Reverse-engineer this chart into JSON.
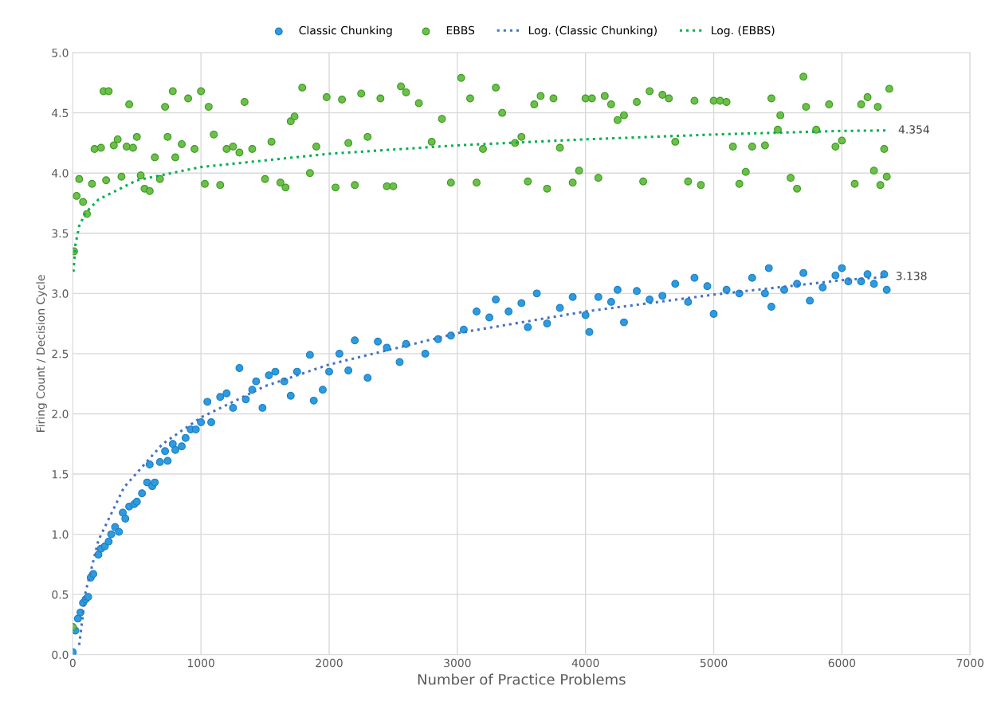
{
  "chart_data": {
    "type": "scatter",
    "xlabel": "Number of Practice Problems",
    "ylabel": "Firing Count / Decision Cycle",
    "xlim": [
      0,
      7000
    ],
    "xticks": [
      0,
      1000,
      2000,
      3000,
      4000,
      5000,
      6000,
      7000
    ],
    "ylim": [
      0,
      5
    ],
    "yticks": [
      {
        "value": 0,
        "label": "0.0"
      },
      {
        "value": 0.5,
        "label": "0.5"
      },
      {
        "value": 1,
        "label": "1.0"
      },
      {
        "value": 1.5,
        "label": "1.5"
      },
      {
        "value": 2,
        "label": "2.0"
      },
      {
        "value": 2.5,
        "label": "2.5"
      },
      {
        "value": 3,
        "label": "3.0"
      },
      {
        "value": 3.5,
        "label": "3.5"
      },
      {
        "value": 4,
        "label": "4.0"
      },
      {
        "value": 4.5,
        "label": "4.5"
      },
      {
        "value": 5,
        "label": "5.0"
      }
    ],
    "grid": true,
    "legend": "top",
    "marker": "circle",
    "series": [
      {
        "name": "Classic Chunking",
        "color": "#2e9be0",
        "x": [
          0,
          20,
          40,
          60,
          80,
          100,
          120,
          140,
          160,
          200,
          220,
          250,
          280,
          300,
          330,
          360,
          390,
          410,
          440,
          480,
          500,
          540,
          580,
          600,
          620,
          640,
          680,
          720,
          740,
          780,
          800,
          850,
          880,
          920,
          960,
          1000,
          1050,
          1080,
          1150,
          1200,
          1250,
          1300,
          1350,
          1400,
          1430,
          1480,
          1530,
          1580,
          1650,
          1700,
          1750,
          1850,
          1880,
          1950,
          2000,
          2080,
          2150,
          2200,
          2300,
          2380,
          2450,
          2550,
          2600,
          2750,
          2850,
          2950,
          3050,
          3150,
          3250,
          3300,
          3400,
          3500,
          3550,
          3620,
          3700,
          3800,
          3900,
          4000,
          4030,
          4100,
          4200,
          4250,
          4300,
          4400,
          4500,
          4600,
          4700,
          4800,
          4850,
          4950,
          5000,
          5100,
          5200,
          5300,
          5400,
          5430,
          5450,
          5550,
          5650,
          5700,
          5750,
          5850,
          5950,
          6000,
          6050,
          6150,
          6200,
          6250,
          6330,
          6350
        ],
        "values": [
          0.02,
          0.2,
          0.3,
          0.35,
          0.43,
          0.46,
          0.48,
          0.64,
          0.67,
          0.83,
          0.88,
          0.9,
          0.94,
          1.0,
          1.06,
          1.02,
          1.18,
          1.13,
          1.23,
          1.25,
          1.27,
          1.34,
          1.43,
          1.58,
          1.4,
          1.43,
          1.6,
          1.69,
          1.61,
          1.75,
          1.7,
          1.73,
          1.8,
          1.87,
          1.87,
          1.93,
          2.1,
          1.93,
          2.14,
          2.17,
          2.05,
          2.38,
          2.12,
          2.2,
          2.27,
          2.05,
          2.32,
          2.35,
          2.27,
          2.15,
          2.35,
          2.49,
          2.11,
          2.2,
          2.35,
          2.5,
          2.36,
          2.61,
          2.3,
          2.6,
          2.55,
          2.43,
          2.58,
          2.5,
          2.62,
          2.65,
          2.7,
          2.85,
          2.8,
          2.95,
          2.85,
          2.92,
          2.72,
          3.0,
          2.75,
          2.88,
          2.97,
          2.82,
          2.68,
          2.97,
          2.93,
          3.03,
          2.76,
          3.02,
          2.95,
          2.98,
          3.08,
          2.93,
          3.13,
          3.06,
          2.83,
          3.03,
          3.0,
          3.13,
          3.0,
          3.21,
          2.89,
          3.03,
          3.08,
          3.17,
          2.94,
          3.05,
          3.15,
          3.21,
          3.1,
          3.1,
          3.16,
          3.08,
          3.16,
          3.03
        ]
      },
      {
        "name": "EBBS",
        "color": "#6cc04a",
        "x": [
          0,
          10,
          30,
          50,
          80,
          110,
          150,
          170,
          220,
          240,
          260,
          280,
          320,
          350,
          380,
          420,
          440,
          470,
          500,
          530,
          560,
          600,
          640,
          680,
          720,
          740,
          780,
          800,
          850,
          900,
          950,
          1000,
          1030,
          1060,
          1100,
          1150,
          1200,
          1250,
          1300,
          1340,
          1400,
          1500,
          1550,
          1620,
          1660,
          1700,
          1730,
          1790,
          1850,
          1900,
          1980,
          2050,
          2100,
          2150,
          2200,
          2250,
          2300,
          2400,
          2450,
          2500,
          2560,
          2600,
          2700,
          2800,
          2880,
          2950,
          3030,
          3100,
          3150,
          3200,
          3300,
          3350,
          3450,
          3500,
          3550,
          3600,
          3650,
          3700,
          3750,
          3800,
          3900,
          3950,
          4000,
          4050,
          4100,
          4150,
          4200,
          4250,
          4300,
          4400,
          4450,
          4500,
          4600,
          4650,
          4700,
          4800,
          4850,
          4900,
          5000,
          5050,
          5100,
          5150,
          5200,
          5250,
          5300,
          5400,
          5450,
          5500,
          5520,
          5600,
          5650,
          5700,
          5720,
          5800,
          5900,
          5950,
          6000,
          6100,
          6150,
          6200,
          6250,
          6280,
          6300,
          6330,
          6350,
          6370
        ],
        "values": [
          0.23,
          3.35,
          3.81,
          3.95,
          3.76,
          3.66,
          3.91,
          4.2,
          4.21,
          4.68,
          3.94,
          4.68,
          4.23,
          4.28,
          3.97,
          4.22,
          4.57,
          4.21,
          4.3,
          3.98,
          3.87,
          3.85,
          4.13,
          3.95,
          4.55,
          4.3,
          4.68,
          4.13,
          4.24,
          4.62,
          4.2,
          4.68,
          3.91,
          4.55,
          4.32,
          3.9,
          4.2,
          4.22,
          4.17,
          4.59,
          4.2,
          3.95,
          4.26,
          3.92,
          3.88,
          4.43,
          4.47,
          4.71,
          4.0,
          4.22,
          4.63,
          3.88,
          4.61,
          4.25,
          3.9,
          4.66,
          4.3,
          4.62,
          3.89,
          3.89,
          4.72,
          4.67,
          4.58,
          4.26,
          4.45,
          3.92,
          4.79,
          4.62,
          3.92,
          4.2,
          4.71,
          4.5,
          4.25,
          4.3,
          3.93,
          4.57,
          4.64,
          3.87,
          4.62,
          4.21,
          3.92,
          4.02,
          4.62,
          4.62,
          3.96,
          4.64,
          4.57,
          4.44,
          4.48,
          4.59,
          3.93,
          4.68,
          4.65,
          4.62,
          4.26,
          3.93,
          4.6,
          3.9,
          4.6,
          4.6,
          4.59,
          4.22,
          3.91,
          4.01,
          4.22,
          4.23,
          4.62,
          4.36,
          4.48,
          3.96,
          3.87,
          4.8,
          4.55,
          4.36,
          4.57,
          4.22,
          4.27,
          3.91,
          4.57,
          4.63,
          4.02,
          4.55,
          3.9,
          4.2,
          3.97,
          4.7
        ]
      },
      {
        "name": "Log. (Classic Chunking)",
        "type": "line",
        "line_style": "dotted",
        "marker": "none",
        "color": "#4472c4",
        "x": [
          50,
          100,
          200,
          400,
          700,
          1000,
          1500,
          2000,
          3000,
          4000,
          5000,
          6000,
          6350
        ],
        "values": [
          0.08,
          0.52,
          0.95,
          1.39,
          1.75,
          1.97,
          2.23,
          2.41,
          2.67,
          2.85,
          2.99,
          3.11,
          3.138
        ]
      },
      {
        "name": "Log. (EBBS)",
        "type": "line",
        "line_style": "dotted",
        "marker": "none",
        "color": "#00b050",
        "x": [
          5,
          20,
          50,
          100,
          200,
          500,
          1000,
          2000,
          3000,
          4000,
          5000,
          6000,
          6370
        ],
        "values": [
          3.18,
          3.4,
          3.56,
          3.67,
          3.78,
          3.94,
          4.05,
          4.16,
          4.23,
          4.28,
          4.32,
          4.35,
          4.354
        ]
      }
    ],
    "annotations": [
      {
        "text": "3.138",
        "x": 6350,
        "y": 3.138
      },
      {
        "text": "4.354",
        "x": 6370,
        "y": 4.354
      }
    ]
  }
}
